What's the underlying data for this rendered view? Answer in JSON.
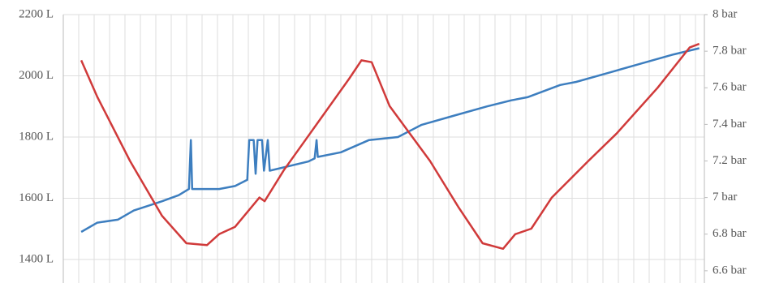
{
  "chart_data": {
    "type": "line",
    "xlim": [
      0,
      100
    ],
    "ylim": [
      1323,
      2200
    ],
    "yticks": [
      {
        "value": 1400,
        "label": "1400 L"
      },
      {
        "value": 1600,
        "label": "1600 L"
      },
      {
        "value": 1800,
        "label": "1800 L"
      },
      {
        "value": 2000,
        "label": "2000 L"
      },
      {
        "value": 2200,
        "label": "2200 L"
      }
    ],
    "y2lim": [
      6.533,
      8
    ],
    "y2ticks": [
      {
        "value": 6.6,
        "label": "6.6 bar"
      },
      {
        "value": 6.8,
        "label": "6.8 bar"
      },
      {
        "value": 7,
        "label": "7 bar"
      },
      {
        "value": 7.2,
        "label": "7.2 bar"
      },
      {
        "value": 7.4,
        "label": "7.4 bar"
      },
      {
        "value": 7.6,
        "label": "7.6 bar"
      },
      {
        "value": 7.8,
        "label": "7.8 bar"
      },
      {
        "value": 8,
        "label": "8 bar"
      }
    ],
    "grid": true,
    "series": [
      {
        "color": "#3d7ebf",
        "axis": "y",
        "x": [
          2.8,
          5.3,
          8.5,
          11.0,
          15.4,
          18.0,
          19.6,
          19.9,
          20.1,
          24.3,
          26.8,
          28.7,
          29.0,
          29.7,
          30.0,
          30.3,
          31.0,
          31.3,
          31.9,
          32.2,
          38.2,
          39.2,
          39.5,
          39.7,
          43.3,
          47.7,
          52.2,
          55.9,
          61.0,
          66.1,
          69.9,
          72.4,
          77.5,
          80.0,
          85.1,
          90.1,
          95.2,
          99.2
        ],
        "values": [
          1490,
          1520,
          1530,
          1560,
          1590,
          1610,
          1630,
          1790,
          1630,
          1630,
          1640,
          1660,
          1790,
          1790,
          1680,
          1790,
          1790,
          1690,
          1790,
          1690,
          1720,
          1730,
          1790,
          1735,
          1750,
          1790,
          1800,
          1840,
          1870,
          1900,
          1920,
          1930,
          1970,
          1980,
          2010,
          2040,
          2070,
          2090
        ]
      },
      {
        "color": "#d03a3a",
        "axis": "y2",
        "x": [
          2.8,
          5.3,
          10.4,
          15.4,
          19.2,
          22.4,
          24.3,
          26.8,
          30.6,
          31.4,
          34.4,
          39.5,
          44.6,
          46.5,
          48.1,
          50.9,
          57.2,
          61.6,
          65.4,
          68.6,
          70.5,
          73.0,
          76.2,
          81.9,
          86.3,
          92.7,
          97.7,
          99.2
        ],
        "values": [
          7.75,
          7.55,
          7.2,
          6.9,
          6.75,
          6.74,
          6.8,
          6.84,
          7.0,
          6.98,
          7.15,
          7.4,
          7.65,
          7.75,
          7.74,
          7.5,
          7.2,
          6.95,
          6.75,
          6.72,
          6.8,
          6.83,
          7.0,
          7.2,
          7.35,
          7.6,
          7.82,
          7.84
        ]
      }
    ]
  }
}
